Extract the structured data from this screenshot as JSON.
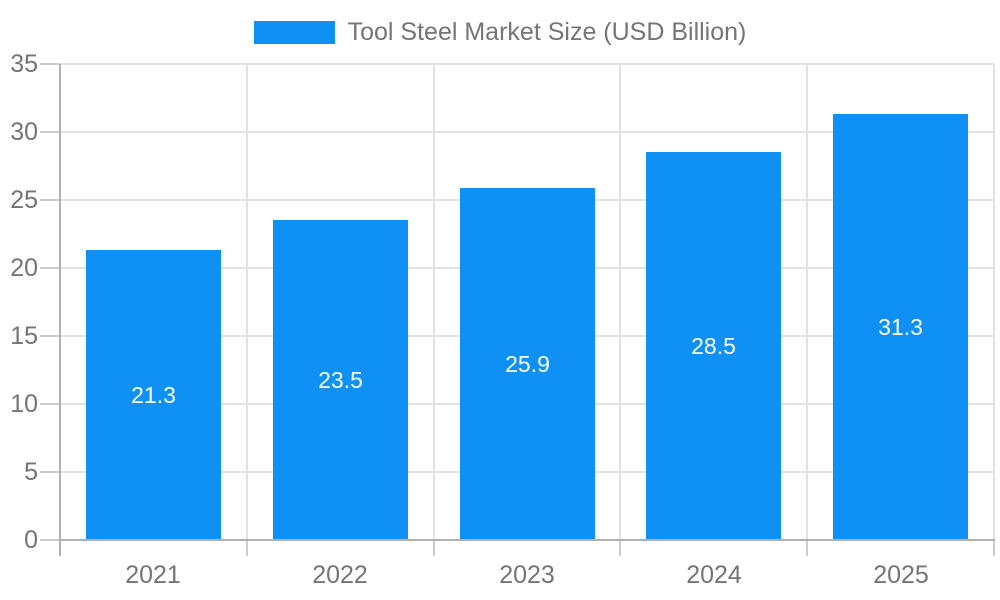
{
  "chart_data": {
    "type": "bar",
    "title": "Tool Steel Market Size (USD Billion)",
    "legend": {
      "label": "Tool Steel Market Size (USD Billion)",
      "position": "top-center"
    },
    "categories": [
      "2021",
      "2022",
      "2023",
      "2024",
      "2025"
    ],
    "series": [
      {
        "name": "Tool Steel Market Size (USD Billion)",
        "values": [
          21.3,
          23.5,
          25.9,
          28.5,
          31.3
        ],
        "data_labels": [
          "21.3",
          "23.5",
          "25.9",
          "28.5",
          "31.3"
        ]
      }
    ],
    "xlabel": "",
    "ylabel": "",
    "ylim": [
      0,
      35
    ],
    "yticks": [
      0,
      5,
      10,
      15,
      20,
      25,
      30,
      35
    ],
    "grid": true,
    "data_label_position": "inside-center"
  },
  "colors": {
    "bar": "#0e90f5",
    "axis_label": "#757575",
    "legend_text": "#757575",
    "gridline": "#e2e2e2",
    "axis_line": "#b0b0b0",
    "tick": "#cccccc",
    "value_label": "#ffffff",
    "background": "#ffffff"
  }
}
